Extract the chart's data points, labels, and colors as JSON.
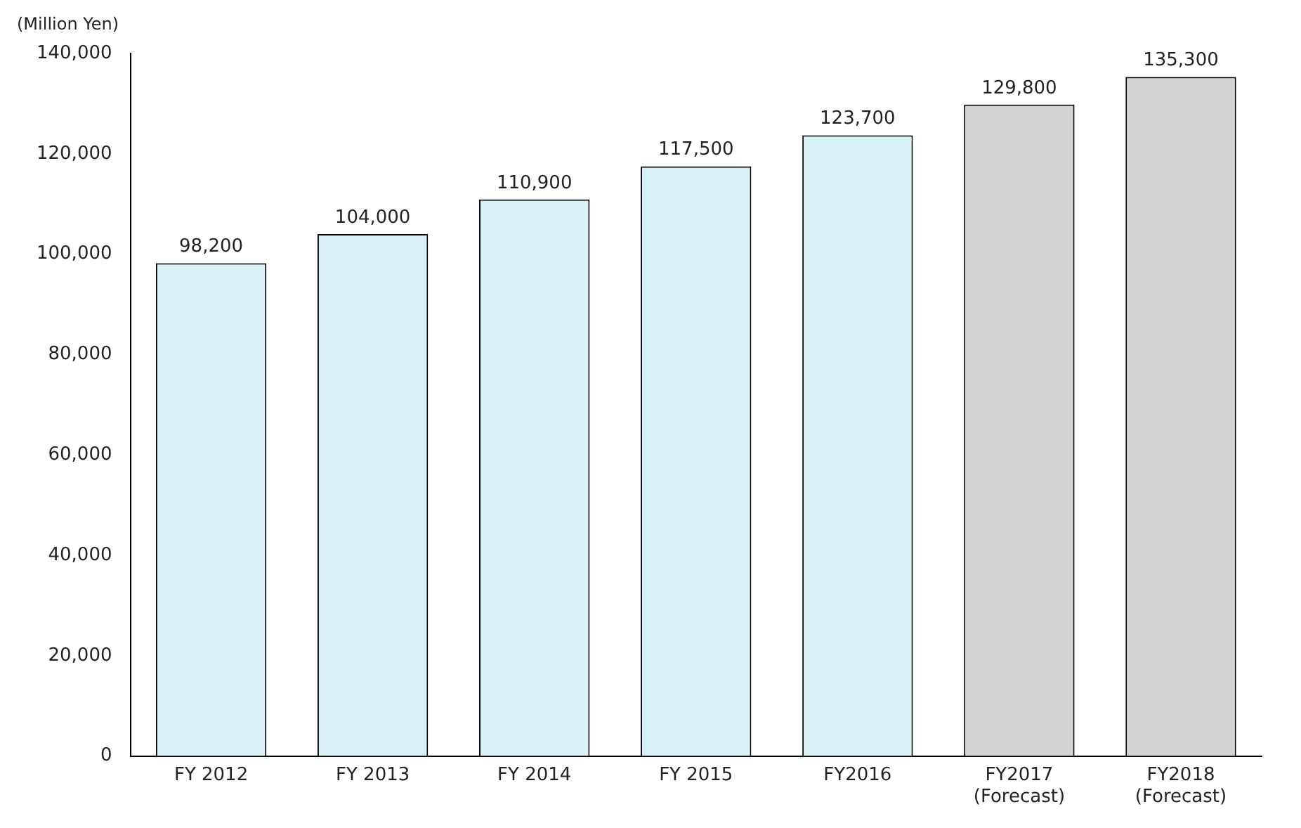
{
  "chart_data": {
    "type": "bar",
    "ylabel": "(Million Yen)",
    "categories": [
      "FY 2012",
      "FY 2013",
      "FY 2014",
      "FY 2015",
      "FY2016",
      "FY2017\n(Forecast)",
      "FY2018\n(Forecast)"
    ],
    "values": [
      98200,
      104000,
      110900,
      117500,
      123700,
      129800,
      135300
    ],
    "value_labels": [
      "98,200",
      "104,000",
      "110,900",
      "117,500",
      "123,700",
      "129,800",
      "135,300"
    ],
    "colors": [
      "#d8f1f6",
      "#d8f1f6",
      "#d8f1f6",
      "#d8f1f6",
      "#d8f1f6",
      "#d4d4d4",
      "#d4d4d4"
    ],
    "ylim": [
      0,
      140000
    ],
    "yticks": [
      0,
      {
        "value": 20000,
        "label": "20,000"
      },
      {
        "value": 40000,
        "label": "40,000"
      },
      {
        "value": 60000,
        "label": "60,000"
      },
      {
        "value": 80000,
        "label": "80,000"
      },
      {
        "value": 100000,
        "label": "100,000"
      },
      {
        "value": 120000,
        "label": "120,000"
      },
      {
        "value": 140000,
        "label": "140,000"
      }
    ],
    "grid": false,
    "legend": false
  }
}
